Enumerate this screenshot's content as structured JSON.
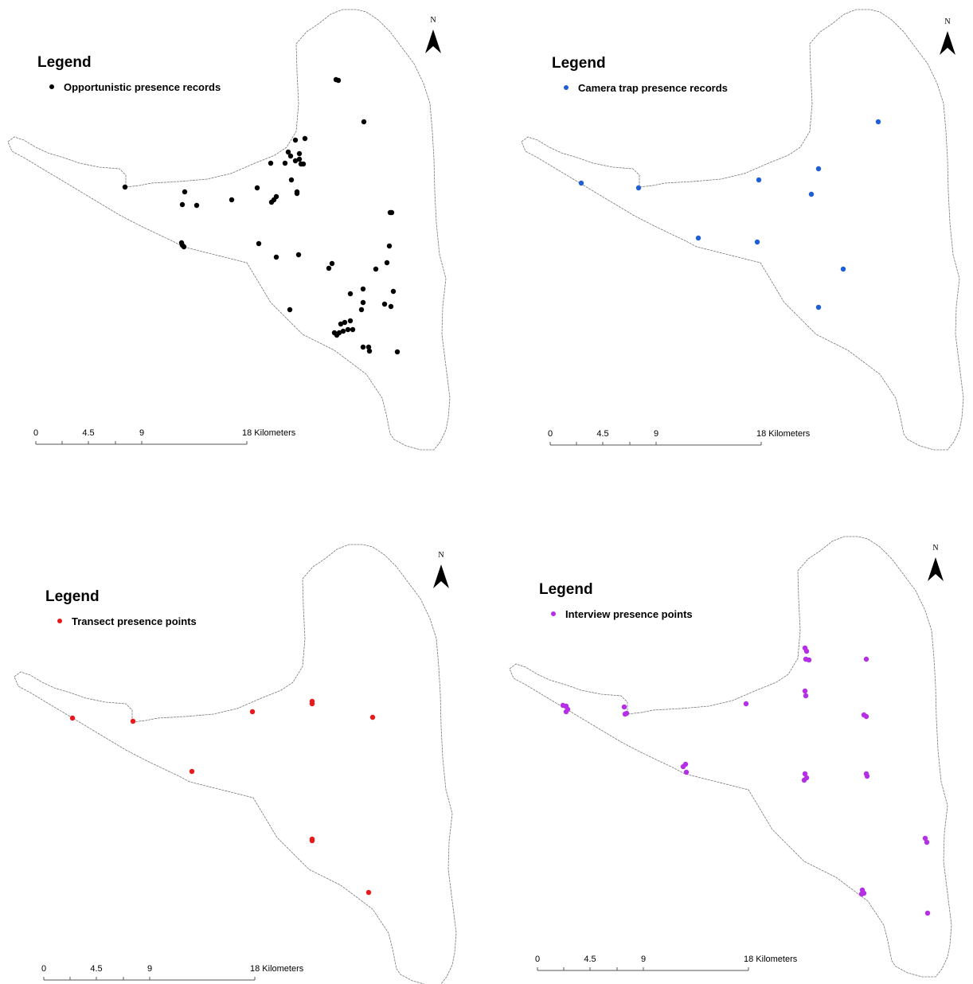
{
  "panels": [
    {
      "legend_title": "Legend",
      "legend_label": "Opportunistic presence records",
      "color": "#000000",
      "north": "N",
      "scale": [
        "0",
        "4.5",
        "9",
        "18 Kilometers"
      ]
    },
    {
      "legend_title": "Legend",
      "legend_label": "Camera trap presence records",
      "color": "#1f5fd6",
      "north": "N",
      "scale": [
        "0",
        "4.5",
        "9",
        "18 Kilometers"
      ]
    },
    {
      "legend_title": "Legend",
      "legend_label": "Transect presence points",
      "color": "#e8191b",
      "north": "N",
      "scale": [
        "0",
        "4.5",
        "9",
        "18 Kilometers"
      ]
    },
    {
      "legend_title": "Legend",
      "legend_label": "Interview presence points",
      "color": "#b52fe6",
      "north": "N",
      "scale": [
        "0",
        "4.5",
        "9",
        "18 Kilometers"
      ]
    }
  ]
}
